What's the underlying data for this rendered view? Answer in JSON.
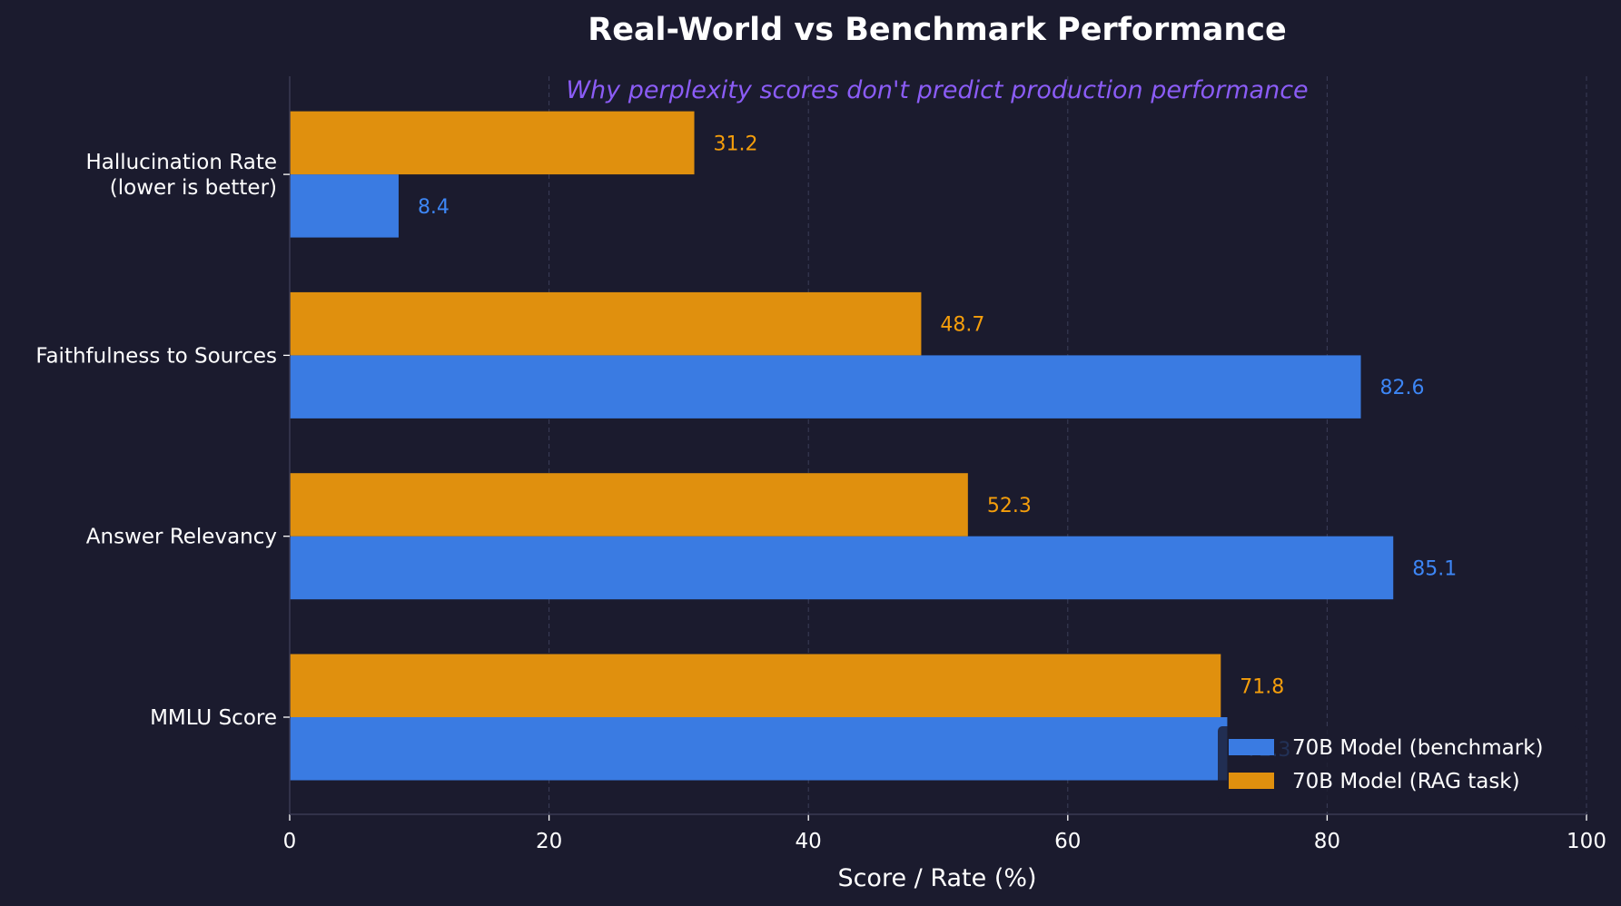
{
  "chart_data": {
    "type": "bar",
    "orientation": "horizontal",
    "title": "Real-World vs Benchmark Performance",
    "subtitle": "Why perplexity scores don't predict production performance",
    "xlabel": "Score / Rate (%)",
    "ylabel": "",
    "xlim": [
      0,
      100
    ],
    "xticks": [
      0,
      20,
      40,
      60,
      80,
      100
    ],
    "grid": "x-dashed",
    "legend_position": "bottom-right",
    "categories": [
      "MMLU Score",
      "Answer Relevancy",
      "Faithfulness to Sources",
      "Hallucination Rate\n(lower is better)"
    ],
    "series": [
      {
        "name": "70B Model (benchmark)",
        "color": "#3a7be2",
        "label_color": "#3d86f5",
        "values": [
          72.3,
          85.1,
          82.6,
          8.4
        ]
      },
      {
        "name": "70B Model (RAG task)",
        "color": "#e0900e",
        "label_color": "#f59e0b",
        "values": [
          71.8,
          52.3,
          48.7,
          31.2
        ]
      }
    ]
  }
}
